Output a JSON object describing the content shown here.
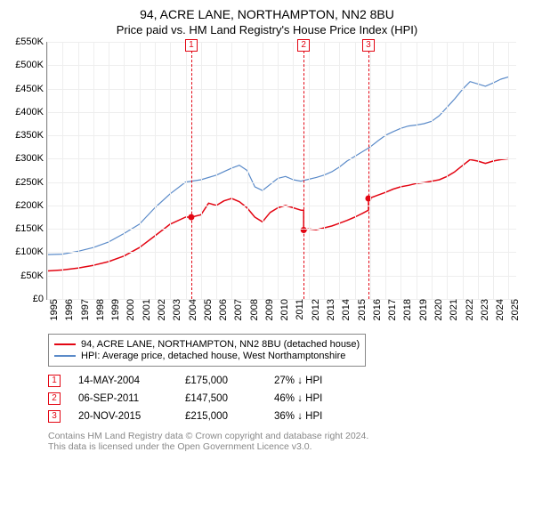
{
  "title": {
    "line1": "94, ACRE LANE, NORTHAMPTON, NN2 8BU",
    "line2": "Price paid vs. HM Land Registry's House Price Index (HPI)"
  },
  "chart": {
    "type": "line",
    "background_color": "#ffffff",
    "grid_color": "#eeeeee",
    "grid_minor_color": "#f5f5f5",
    "axis_color": "#888888",
    "xlim": [
      1995,
      2025.5
    ],
    "ylim": [
      0,
      550000
    ],
    "ytick_step": 50000,
    "ytick_labels": [
      "£0",
      "£50K",
      "£100K",
      "£150K",
      "£200K",
      "£250K",
      "£300K",
      "£350K",
      "£400K",
      "£450K",
      "£500K",
      "£550K"
    ],
    "xticks": [
      1995,
      1996,
      1997,
      1998,
      1999,
      2000,
      2001,
      2002,
      2003,
      2004,
      2005,
      2006,
      2007,
      2008,
      2009,
      2010,
      2011,
      2012,
      2013,
      2014,
      2015,
      2016,
      2017,
      2018,
      2019,
      2020,
      2021,
      2022,
      2023,
      2024,
      2025
    ],
    "label_fontsize": 11,
    "series": [
      {
        "name": "property_price",
        "label": "94, ACRE LANE, NORTHAMPTON, NN2 8BU (detached house)",
        "color": "#e30613",
        "line_width": 1.5,
        "points": [
          [
            1995.0,
            60000
          ],
          [
            1996.0,
            62000
          ],
          [
            1997.0,
            66000
          ],
          [
            1998.0,
            72000
          ],
          [
            1999.0,
            80000
          ],
          [
            2000.0,
            92000
          ],
          [
            2001.0,
            110000
          ],
          [
            2002.0,
            135000
          ],
          [
            2003.0,
            160000
          ],
          [
            2004.0,
            175000
          ],
          [
            2004.37,
            175000
          ],
          [
            2004.5,
            176000
          ],
          [
            2005.0,
            180000
          ],
          [
            2005.5,
            205000
          ],
          [
            2006.0,
            200000
          ],
          [
            2006.5,
            210000
          ],
          [
            2007.0,
            215000
          ],
          [
            2007.5,
            208000
          ],
          [
            2008.0,
            195000
          ],
          [
            2008.5,
            175000
          ],
          [
            2009.0,
            165000
          ],
          [
            2009.5,
            185000
          ],
          [
            2010.0,
            195000
          ],
          [
            2010.5,
            200000
          ],
          [
            2011.0,
            195000
          ],
          [
            2011.5,
            190000
          ],
          [
            2011.68,
            190000
          ],
          [
            2011.68,
            147500
          ],
          [
            2012.0,
            150000
          ],
          [
            2012.5,
            148000
          ],
          [
            2013.0,
            152000
          ],
          [
            2013.5,
            156000
          ],
          [
            2014.0,
            162000
          ],
          [
            2014.5,
            168000
          ],
          [
            2015.0,
            175000
          ],
          [
            2015.5,
            183000
          ],
          [
            2015.89,
            190000
          ],
          [
            2015.89,
            215000
          ],
          [
            2016.0,
            216000
          ],
          [
            2016.5,
            222000
          ],
          [
            2017.0,
            228000
          ],
          [
            2017.5,
            235000
          ],
          [
            2018.0,
            240000
          ],
          [
            2018.5,
            243000
          ],
          [
            2019.0,
            247000
          ],
          [
            2019.5,
            249000
          ],
          [
            2020.0,
            252000
          ],
          [
            2020.5,
            255000
          ],
          [
            2021.0,
            262000
          ],
          [
            2021.5,
            272000
          ],
          [
            2022.0,
            285000
          ],
          [
            2022.5,
            298000
          ],
          [
            2023.0,
            295000
          ],
          [
            2023.5,
            290000
          ],
          [
            2024.0,
            295000
          ],
          [
            2024.5,
            298000
          ],
          [
            2025.0,
            300000
          ]
        ]
      },
      {
        "name": "hpi",
        "label": "HPI: Average price, detached house, West Northamptonshire",
        "color": "#5b8bc9",
        "line_width": 1.2,
        "points": [
          [
            1995.0,
            95000
          ],
          [
            1996.0,
            96000
          ],
          [
            1997.0,
            102000
          ],
          [
            1998.0,
            110000
          ],
          [
            1999.0,
            122000
          ],
          [
            2000.0,
            140000
          ],
          [
            2001.0,
            160000
          ],
          [
            2002.0,
            195000
          ],
          [
            2003.0,
            225000
          ],
          [
            2004.0,
            250000
          ],
          [
            2005.0,
            255000
          ],
          [
            2006.0,
            265000
          ],
          [
            2007.0,
            280000
          ],
          [
            2007.5,
            286000
          ],
          [
            2008.0,
            275000
          ],
          [
            2008.5,
            240000
          ],
          [
            2009.0,
            232000
          ],
          [
            2009.5,
            245000
          ],
          [
            2010.0,
            258000
          ],
          [
            2010.5,
            262000
          ],
          [
            2011.0,
            255000
          ],
          [
            2011.5,
            252000
          ],
          [
            2012.0,
            256000
          ],
          [
            2012.5,
            260000
          ],
          [
            2013.0,
            265000
          ],
          [
            2013.5,
            272000
          ],
          [
            2014.0,
            282000
          ],
          [
            2014.5,
            295000
          ],
          [
            2015.0,
            305000
          ],
          [
            2015.5,
            315000
          ],
          [
            2016.0,
            325000
          ],
          [
            2016.5,
            338000
          ],
          [
            2017.0,
            350000
          ],
          [
            2017.5,
            358000
          ],
          [
            2018.0,
            365000
          ],
          [
            2018.5,
            370000
          ],
          [
            2019.0,
            372000
          ],
          [
            2019.5,
            375000
          ],
          [
            2020.0,
            380000
          ],
          [
            2020.5,
            392000
          ],
          [
            2021.0,
            410000
          ],
          [
            2021.5,
            428000
          ],
          [
            2022.0,
            448000
          ],
          [
            2022.5,
            465000
          ],
          [
            2023.0,
            460000
          ],
          [
            2023.5,
            455000
          ],
          [
            2024.0,
            462000
          ],
          [
            2024.5,
            470000
          ],
          [
            2025.0,
            475000
          ]
        ]
      }
    ],
    "event_markers": [
      {
        "n": "1",
        "x": 2004.37,
        "y": 175000,
        "color": "#e30613"
      },
      {
        "n": "2",
        "x": 2011.68,
        "y": 147500,
        "color": "#e30613"
      },
      {
        "n": "3",
        "x": 2015.89,
        "y": 215000,
        "color": "#e30613"
      }
    ]
  },
  "legend": {
    "items": [
      {
        "color": "#e30613",
        "label": "94, ACRE LANE, NORTHAMPTON, NN2 8BU (detached house)"
      },
      {
        "color": "#5b8bc9",
        "label": "HPI: Average price, detached house, West Northamptonshire"
      }
    ]
  },
  "transactions": [
    {
      "n": "1",
      "date": "14-MAY-2004",
      "price": "£175,000",
      "hpi": "27% ↓ HPI",
      "color": "#e30613"
    },
    {
      "n": "2",
      "date": "06-SEP-2011",
      "price": "£147,500",
      "hpi": "46% ↓ HPI",
      "color": "#e30613"
    },
    {
      "n": "3",
      "date": "20-NOV-2015",
      "price": "£215,000",
      "hpi": "36% ↓ HPI",
      "color": "#e30613"
    }
  ],
  "footer": {
    "line1": "Contains HM Land Registry data © Crown copyright and database right 2024.",
    "line2": "This data is licensed under the Open Government Licence v3.0."
  }
}
